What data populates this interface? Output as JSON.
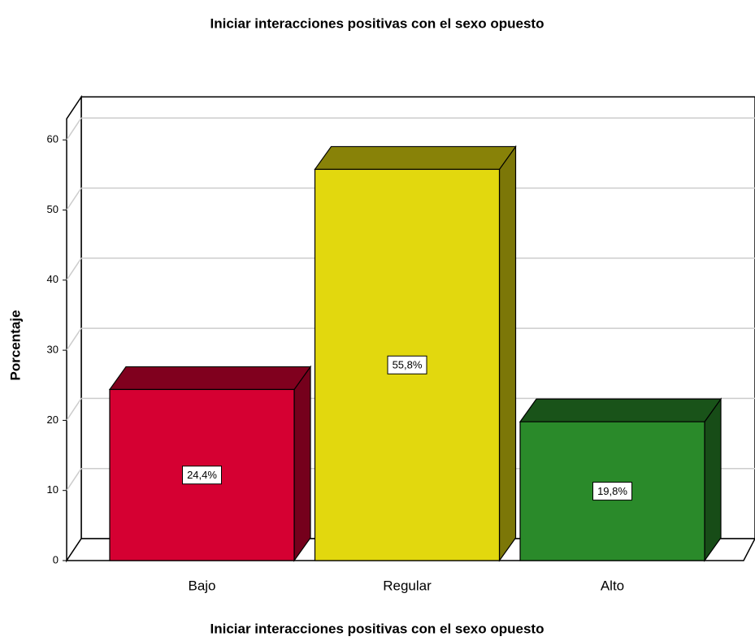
{
  "chart_data": {
    "type": "bar3d",
    "title": "Iniciar interacciones positivas con el sexo opuesto",
    "x_label": "Iniciar interacciones positivas con el sexo opuesto",
    "y_label": "Porcentaje",
    "categories": [
      "Bajo",
      "Regular",
      "Alto"
    ],
    "values": [
      24.4,
      55.8,
      19.8
    ],
    "value_labels": [
      "24,4%",
      "55,8%",
      "19,8%"
    ],
    "colors": [
      "#d50032",
      "#e2d80e",
      "#2a8a2a"
    ],
    "ylim": [
      0,
      63
    ],
    "yticks": [
      0,
      10,
      20,
      30,
      40,
      50,
      60
    ],
    "grid": true
  }
}
